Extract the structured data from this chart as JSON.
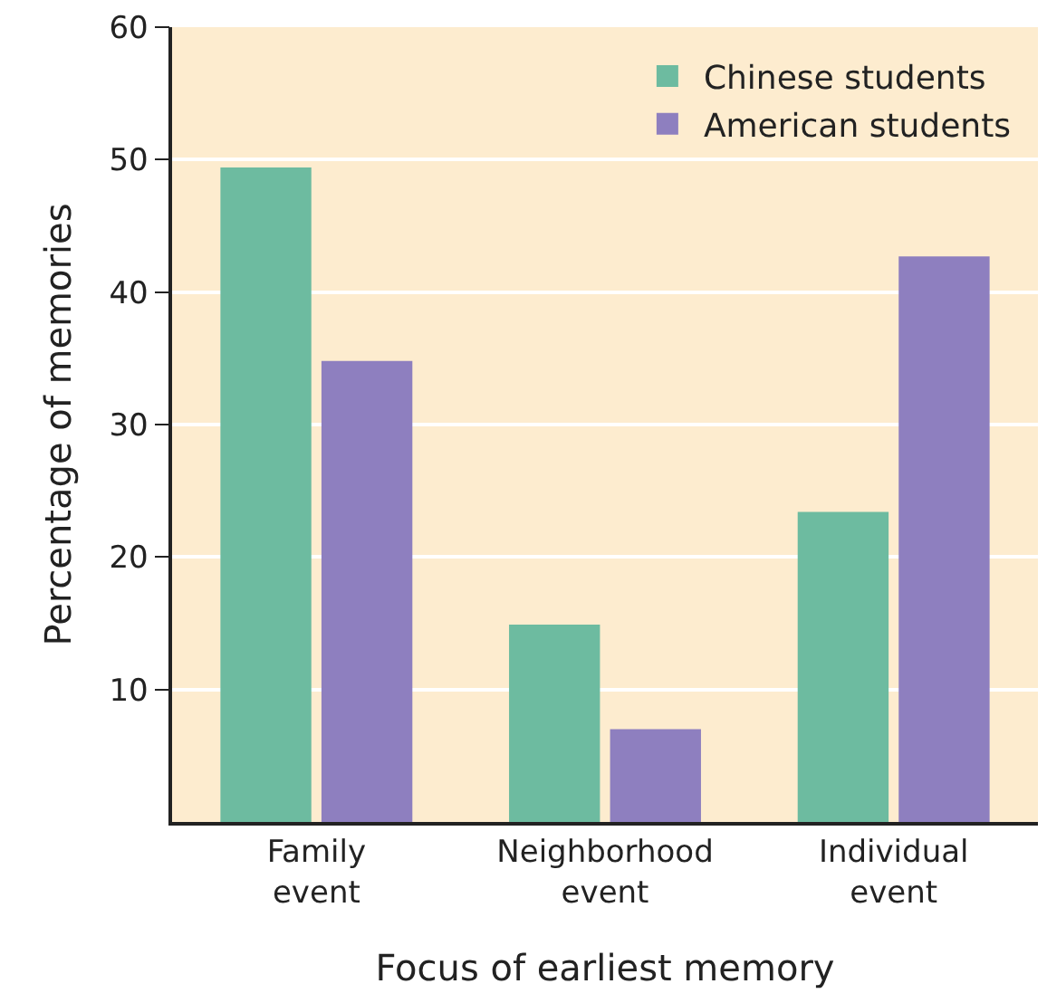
{
  "chart_data": {
    "type": "bar",
    "xlabel": "Focus of earliest memory",
    "ylabel": "Percentage of memories",
    "categories": [
      "Family\nevent",
      "Neighborhood\nevent",
      "Individual\nevent"
    ],
    "series": [
      {
        "name": "Chinese students",
        "color": "#6dbba0",
        "values": [
          49.4,
          14.9,
          23.4
        ]
      },
      {
        "name": "American students",
        "color": "#8e7fbf",
        "values": [
          34.8,
          7.0,
          42.7
        ]
      }
    ],
    "ylim": [
      0,
      60
    ],
    "yticks": [
      10,
      20,
      30,
      40,
      50,
      60
    ],
    "grid": "y",
    "legend": "top right"
  }
}
